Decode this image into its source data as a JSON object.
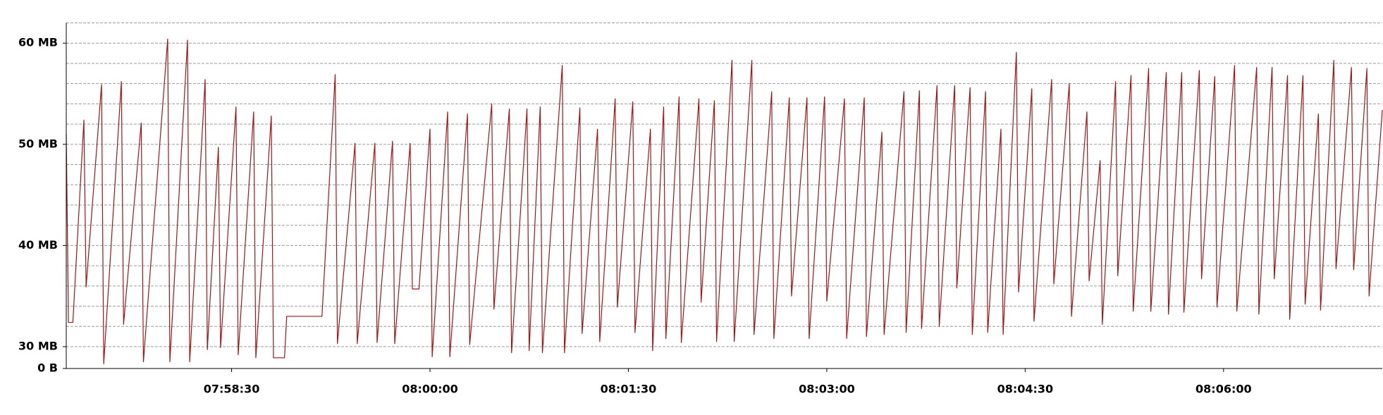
{
  "chart_data": {
    "type": "line",
    "color": "#a31515",
    "grid": true,
    "xlim": [
      "07:57:15",
      "08:07:12"
    ],
    "xticks": [
      "07:58:30",
      "08:00:00",
      "08:01:30",
      "08:03:00",
      "08:04:30",
      "08:06:00"
    ],
    "ylim": [
      0,
      62
    ],
    "yticks": [
      {
        "value": 0,
        "label": "0 B"
      },
      {
        "value": 30,
        "label": "30 MB"
      },
      {
        "value": 40,
        "label": "40 MB"
      },
      {
        "value": 50,
        "label": "50 MB"
      },
      {
        "value": 60,
        "label": "60 MB"
      }
    ],
    "yminor": [
      32,
      34,
      36,
      38,
      42,
      44,
      46,
      48,
      52,
      54,
      56,
      58,
      62
    ],
    "x": [
      "07:57:15",
      "07:57:16",
      "07:57:18",
      "07:57:23",
      "07:57:24",
      "07:57:31",
      "07:57:32",
      "07:57:40",
      "07:57:41",
      "07:57:49",
      "07:57:50",
      "07:58:01",
      "07:58:02",
      "07:58:10",
      "07:58:11",
      "07:58:18",
      "07:58:19",
      "07:58:24",
      "07:58:25",
      "07:58:32",
      "07:58:33",
      "07:58:40",
      "07:58:41",
      "07:58:48",
      "07:58:49",
      "07:58:54",
      "07:58:55",
      "07:59:11",
      "07:59:17",
      "07:59:18",
      "07:59:26",
      "07:59:27",
      "07:59:35",
      "07:59:36",
      "07:59:43",
      "07:59:44",
      "07:59:51",
      "07:59:52",
      "07:59:55",
      "08:00:00",
      "08:00:01",
      "08:00:08",
      "08:00:09",
      "08:00:17",
      "08:00:18",
      "08:00:28",
      "08:00:29",
      "08:00:36",
      "08:00:37",
      "08:00:44",
      "08:00:45",
      "08:00:50",
      "08:00:51",
      "08:01:00",
      "08:01:01",
      "08:01:08",
      "08:01:09",
      "08:01:16",
      "08:01:17",
      "08:01:24",
      "08:01:25",
      "08:01:32",
      "08:01:33",
      "08:01:40",
      "08:01:41",
      "08:01:46",
      "08:01:47",
      "08:01:53",
      "08:01:54",
      "08:02:02",
      "08:02:03",
      "08:02:09",
      "08:02:10",
      "08:02:17",
      "08:02:18",
      "08:02:26",
      "08:02:27",
      "08:02:35",
      "08:02:36",
      "08:02:43",
      "08:02:44",
      "08:02:51",
      "08:02:52",
      "08:02:59",
      "08:03:00",
      "08:03:08",
      "08:03:09",
      "08:03:17",
      "08:03:18",
      "08:03:25",
      "08:03:26",
      "08:03:35",
      "08:03:36",
      "08:03:42",
      "08:03:43",
      "08:03:50",
      "08:03:51",
      "08:03:58",
      "08:03:59",
      "08:04:05",
      "08:04:06",
      "08:04:12",
      "08:04:13",
      "08:04:19",
      "08:04:20",
      "08:04:26",
      "08:04:27",
      "08:04:33",
      "08:04:34",
      "08:04:42",
      "08:04:43",
      "08:04:50",
      "08:04:51",
      "08:04:58",
      "08:04:59",
      "08:05:04",
      "08:05:05",
      "08:05:11",
      "08:05:12",
      "08:05:18",
      "08:05:19",
      "08:05:26",
      "08:05:27",
      "08:05:34",
      "08:05:35",
      "08:05:41",
      "08:05:42",
      "08:05:49",
      "08:05:50",
      "08:05:56",
      "08:05:57",
      "08:06:05",
      "08:06:06",
      "08:06:15",
      "08:06:16",
      "08:06:22",
      "08:06:23",
      "08:06:29",
      "08:06:30",
      "08:06:36",
      "08:06:37",
      "08:06:43",
      "08:06:44",
      "08:06:50",
      "08:06:51",
      "08:06:58",
      "08:06:59",
      "08:07:05",
      "08:07:06",
      "08:07:12"
    ],
    "values": [
      51.0,
      32.4,
      32.4,
      52.4,
      35.9,
      55.9,
      28.3,
      56.2,
      32.2,
      52.1,
      28.5,
      60.4,
      28.5,
      60.3,
      28.5,
      56.4,
      29.7,
      49.7,
      29.9,
      53.7,
      29.2,
      53.2,
      28.9,
      52.8,
      28.9,
      28.9,
      33.0,
      33.0,
      56.9,
      30.3,
      50.1,
      30.3,
      50.1,
      30.4,
      50.3,
      30.3,
      50.1,
      35.7,
      35.7,
      51.5,
      29.0,
      53.2,
      29.0,
      53.0,
      30.2,
      54.0,
      33.7,
      53.5,
      29.4,
      53.5,
      29.6,
      53.7,
      29.4,
      57.8,
      29.4,
      53.6,
      31.3,
      51.5,
      30.5,
      54.5,
      33.9,
      54.2,
      31.4,
      51.5,
      29.6,
      53.7,
      30.8,
      54.7,
      30.4,
      54.5,
      34.4,
      54.3,
      30.5,
      58.3,
      30.5,
      58.3,
      31.2,
      55.2,
      30.8,
      54.6,
      35.0,
      54.6,
      30.8,
      54.7,
      34.5,
      54.5,
      30.8,
      54.6,
      31.0,
      51.2,
      31.2,
      55.2,
      31.4,
      55.3,
      31.8,
      55.8,
      32.0,
      55.8,
      35.8,
      55.6,
      31.2,
      55.2,
      31.4,
      51.5,
      31.2,
      59.1,
      35.4,
      55.5,
      32.5,
      56.4,
      36.2,
      56.0,
      33.0,
      53.2,
      36.5,
      48.4,
      32.2,
      56.2,
      37.0,
      56.8,
      33.5,
      57.5,
      33.5,
      57.1,
      33.2,
      57.1,
      33.4,
      57.3,
      36.7,
      56.7,
      33.9,
      57.8,
      33.5,
      57.6,
      33.2,
      57.6,
      36.7,
      56.8,
      32.7,
      56.8,
      34.2,
      53.0,
      33.6,
      58.3,
      37.7,
      57.6,
      37.6,
      57.5,
      35.0,
      53.4
    ]
  }
}
